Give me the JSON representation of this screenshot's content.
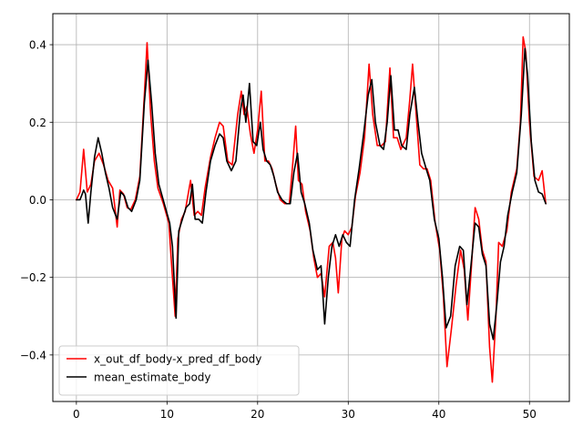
{
  "chart_data": {
    "type": "line",
    "title": "",
    "xlabel": "",
    "ylabel": "",
    "xlim": [
      -2.6,
      54.4
    ],
    "ylim": [
      -0.52,
      0.48
    ],
    "xticks": [
      0,
      10,
      20,
      30,
      40,
      50
    ],
    "xtick_labels": [
      "0",
      "10",
      "20",
      "30",
      "40",
      "50"
    ],
    "yticks": [
      -0.4,
      -0.2,
      0.0,
      0.2,
      0.4
    ],
    "ytick_labels": [
      "−0.4",
      "−0.2",
      "0.0",
      "0.2",
      "0.4"
    ],
    "grid": true,
    "legend_position": "lower-left",
    "series": [
      {
        "name": "x_out_df_body-x_pred_df_body",
        "color": "#ff0000",
        "points": [
          [
            0.0,
            0.0
          ],
          [
            0.4,
            0.02
          ],
          [
            0.8,
            0.13
          ],
          [
            1.2,
            0.02
          ],
          [
            1.6,
            0.04
          ],
          [
            2.0,
            0.1
          ],
          [
            2.5,
            0.12
          ],
          [
            3.0,
            0.09
          ],
          [
            3.5,
            0.05
          ],
          [
            4.0,
            0.03
          ],
          [
            4.5,
            -0.07
          ],
          [
            4.8,
            0.025
          ],
          [
            5.2,
            0.015
          ],
          [
            5.6,
            -0.02
          ],
          [
            6.0,
            -0.025
          ],
          [
            6.5,
            0.0
          ],
          [
            7.0,
            0.06
          ],
          [
            7.5,
            0.27
          ],
          [
            7.8,
            0.405
          ],
          [
            8.2,
            0.22
          ],
          [
            8.6,
            0.1
          ],
          [
            9.0,
            0.03
          ],
          [
            9.6,
            -0.01
          ],
          [
            10.2,
            -0.06
          ],
          [
            10.6,
            -0.2
          ],
          [
            10.9,
            -0.3
          ],
          [
            11.2,
            -0.1
          ],
          [
            11.6,
            -0.05
          ],
          [
            12.0,
            -0.03
          ],
          [
            12.6,
            0.05
          ],
          [
            13.0,
            -0.04
          ],
          [
            13.4,
            -0.03
          ],
          [
            13.8,
            -0.04
          ],
          [
            14.2,
            0.03
          ],
          [
            14.8,
            0.11
          ],
          [
            15.3,
            0.16
          ],
          [
            15.8,
            0.2
          ],
          [
            16.2,
            0.19
          ],
          [
            16.7,
            0.1
          ],
          [
            17.2,
            0.09
          ],
          [
            17.8,
            0.22
          ],
          [
            18.2,
            0.28
          ],
          [
            18.5,
            0.22
          ],
          [
            18.8,
            0.24
          ],
          [
            19.2,
            0.17
          ],
          [
            19.6,
            0.12
          ],
          [
            20.0,
            0.18
          ],
          [
            20.4,
            0.28
          ],
          [
            20.8,
            0.1
          ],
          [
            21.2,
            0.1
          ],
          [
            21.6,
            0.08
          ],
          [
            22.0,
            0.04
          ],
          [
            22.5,
            0.0
          ],
          [
            23.0,
            -0.01
          ],
          [
            23.5,
            -0.01
          ],
          [
            23.9,
            0.1
          ],
          [
            24.2,
            0.19
          ],
          [
            24.5,
            0.05
          ],
          [
            24.9,
            0.04
          ],
          [
            25.3,
            -0.03
          ],
          [
            25.8,
            -0.08
          ],
          [
            26.2,
            -0.15
          ],
          [
            26.6,
            -0.2
          ],
          [
            27.0,
            -0.19
          ],
          [
            27.4,
            -0.25
          ],
          [
            27.9,
            -0.12
          ],
          [
            28.3,
            -0.11
          ],
          [
            28.6,
            -0.15
          ],
          [
            28.9,
            -0.24
          ],
          [
            29.3,
            -0.1
          ],
          [
            29.6,
            -0.08
          ],
          [
            30.0,
            -0.09
          ],
          [
            30.4,
            -0.07
          ],
          [
            30.8,
            0.01
          ],
          [
            31.3,
            0.07
          ],
          [
            31.8,
            0.16
          ],
          [
            32.3,
            0.35
          ],
          [
            32.7,
            0.22
          ],
          [
            33.2,
            0.14
          ],
          [
            33.7,
            0.14
          ],
          [
            34.1,
            0.15
          ],
          [
            34.6,
            0.34
          ],
          [
            35.0,
            0.16
          ],
          [
            35.4,
            0.16
          ],
          [
            35.8,
            0.13
          ],
          [
            36.4,
            0.16
          ],
          [
            36.8,
            0.26
          ],
          [
            37.1,
            0.35
          ],
          [
            37.5,
            0.22
          ],
          [
            37.9,
            0.09
          ],
          [
            38.3,
            0.08
          ],
          [
            38.7,
            0.08
          ],
          [
            39.1,
            0.05
          ],
          [
            39.6,
            -0.06
          ],
          [
            40.1,
            -0.13
          ],
          [
            40.5,
            -0.25
          ],
          [
            40.9,
            -0.43
          ],
          [
            41.4,
            -0.33
          ],
          [
            41.9,
            -0.22
          ],
          [
            42.4,
            -0.13
          ],
          [
            42.8,
            -0.18
          ],
          [
            43.2,
            -0.31
          ],
          [
            43.6,
            -0.17
          ],
          [
            44.0,
            -0.02
          ],
          [
            44.4,
            -0.05
          ],
          [
            44.8,
            -0.13
          ],
          [
            45.2,
            -0.16
          ],
          [
            45.6,
            -0.38
          ],
          [
            45.9,
            -0.47
          ],
          [
            46.3,
            -0.3
          ],
          [
            46.6,
            -0.11
          ],
          [
            47.0,
            -0.12
          ],
          [
            47.5,
            -0.08
          ],
          [
            48.0,
            0.02
          ],
          [
            48.6,
            0.08
          ],
          [
            49.0,
            0.2
          ],
          [
            49.3,
            0.42
          ],
          [
            49.6,
            0.38
          ],
          [
            50.0,
            0.2
          ],
          [
            50.5,
            0.06
          ],
          [
            51.0,
            0.05
          ],
          [
            51.4,
            0.075
          ],
          [
            51.8,
            -0.01
          ]
        ]
      },
      {
        "name": "mean_estimate_body",
        "color": "#000000",
        "points": [
          [
            0.0,
            0.0
          ],
          [
            0.4,
            0.0
          ],
          [
            0.8,
            0.025
          ],
          [
            1.0,
            0.015
          ],
          [
            1.3,
            -0.06
          ],
          [
            1.6,
            0.02
          ],
          [
            2.0,
            0.11
          ],
          [
            2.4,
            0.16
          ],
          [
            2.8,
            0.12
          ],
          [
            3.2,
            0.07
          ],
          [
            3.6,
            0.03
          ],
          [
            4.0,
            -0.02
          ],
          [
            4.5,
            -0.05
          ],
          [
            4.9,
            0.02
          ],
          [
            5.3,
            0.01
          ],
          [
            5.7,
            -0.02
          ],
          [
            6.1,
            -0.03
          ],
          [
            6.6,
            0.0
          ],
          [
            7.0,
            0.05
          ],
          [
            7.5,
            0.25
          ],
          [
            7.9,
            0.36
          ],
          [
            8.3,
            0.25
          ],
          [
            8.7,
            0.12
          ],
          [
            9.1,
            0.04
          ],
          [
            9.7,
            -0.01
          ],
          [
            10.3,
            -0.06
          ],
          [
            10.6,
            -0.12
          ],
          [
            11.0,
            -0.305
          ],
          [
            11.3,
            -0.08
          ],
          [
            11.7,
            -0.05
          ],
          [
            12.1,
            -0.02
          ],
          [
            12.5,
            -0.01
          ],
          [
            12.8,
            0.04
          ],
          [
            13.1,
            -0.05
          ],
          [
            13.5,
            -0.05
          ],
          [
            13.9,
            -0.06
          ],
          [
            14.3,
            0.02
          ],
          [
            14.8,
            0.1
          ],
          [
            15.3,
            0.14
          ],
          [
            15.8,
            0.17
          ],
          [
            16.2,
            0.16
          ],
          [
            16.6,
            0.1
          ],
          [
            17.1,
            0.075
          ],
          [
            17.6,
            0.1
          ],
          [
            18.1,
            0.23
          ],
          [
            18.4,
            0.27
          ],
          [
            18.7,
            0.2
          ],
          [
            19.1,
            0.3
          ],
          [
            19.5,
            0.15
          ],
          [
            19.9,
            0.14
          ],
          [
            20.3,
            0.2
          ],
          [
            20.6,
            0.13
          ],
          [
            21.0,
            0.1
          ],
          [
            21.4,
            0.09
          ],
          [
            21.8,
            0.06
          ],
          [
            22.2,
            0.02
          ],
          [
            22.7,
            0.0
          ],
          [
            23.2,
            -0.01
          ],
          [
            23.6,
            -0.01
          ],
          [
            24.0,
            0.07
          ],
          [
            24.4,
            0.12
          ],
          [
            24.8,
            0.02
          ],
          [
            25.2,
            -0.01
          ],
          [
            25.7,
            -0.06
          ],
          [
            26.1,
            -0.13
          ],
          [
            26.6,
            -0.18
          ],
          [
            27.0,
            -0.17
          ],
          [
            27.4,
            -0.32
          ],
          [
            27.8,
            -0.2
          ],
          [
            28.2,
            -0.12
          ],
          [
            28.6,
            -0.09
          ],
          [
            29.0,
            -0.12
          ],
          [
            29.4,
            -0.09
          ],
          [
            29.8,
            -0.11
          ],
          [
            30.2,
            -0.12
          ],
          [
            30.7,
            0.0
          ],
          [
            31.2,
            0.08
          ],
          [
            31.7,
            0.17
          ],
          [
            32.2,
            0.27
          ],
          [
            32.6,
            0.31
          ],
          [
            33.0,
            0.2
          ],
          [
            33.5,
            0.14
          ],
          [
            33.9,
            0.13
          ],
          [
            34.3,
            0.2
          ],
          [
            34.7,
            0.32
          ],
          [
            35.1,
            0.18
          ],
          [
            35.5,
            0.18
          ],
          [
            35.9,
            0.14
          ],
          [
            36.4,
            0.13
          ],
          [
            36.8,
            0.22
          ],
          [
            37.3,
            0.29
          ],
          [
            37.7,
            0.2
          ],
          [
            38.1,
            0.12
          ],
          [
            38.6,
            0.08
          ],
          [
            39.0,
            0.05
          ],
          [
            39.5,
            -0.05
          ],
          [
            40.0,
            -0.1
          ],
          [
            40.4,
            -0.2
          ],
          [
            40.8,
            -0.33
          ],
          [
            41.3,
            -0.3
          ],
          [
            41.8,
            -0.17
          ],
          [
            42.3,
            -0.12
          ],
          [
            42.7,
            -0.13
          ],
          [
            43.1,
            -0.27
          ],
          [
            43.5,
            -0.18
          ],
          [
            44.0,
            -0.06
          ],
          [
            44.4,
            -0.07
          ],
          [
            44.8,
            -0.14
          ],
          [
            45.2,
            -0.17
          ],
          [
            45.6,
            -0.32
          ],
          [
            46.0,
            -0.36
          ],
          [
            46.4,
            -0.27
          ],
          [
            46.8,
            -0.16
          ],
          [
            47.2,
            -0.12
          ],
          [
            47.6,
            -0.04
          ],
          [
            48.1,
            0.02
          ],
          [
            48.6,
            0.07
          ],
          [
            49.1,
            0.22
          ],
          [
            49.5,
            0.39
          ],
          [
            49.8,
            0.32
          ],
          [
            50.2,
            0.15
          ],
          [
            50.6,
            0.05
          ],
          [
            51.0,
            0.02
          ],
          [
            51.4,
            0.015
          ],
          [
            51.8,
            -0.01
          ]
        ]
      }
    ]
  }
}
